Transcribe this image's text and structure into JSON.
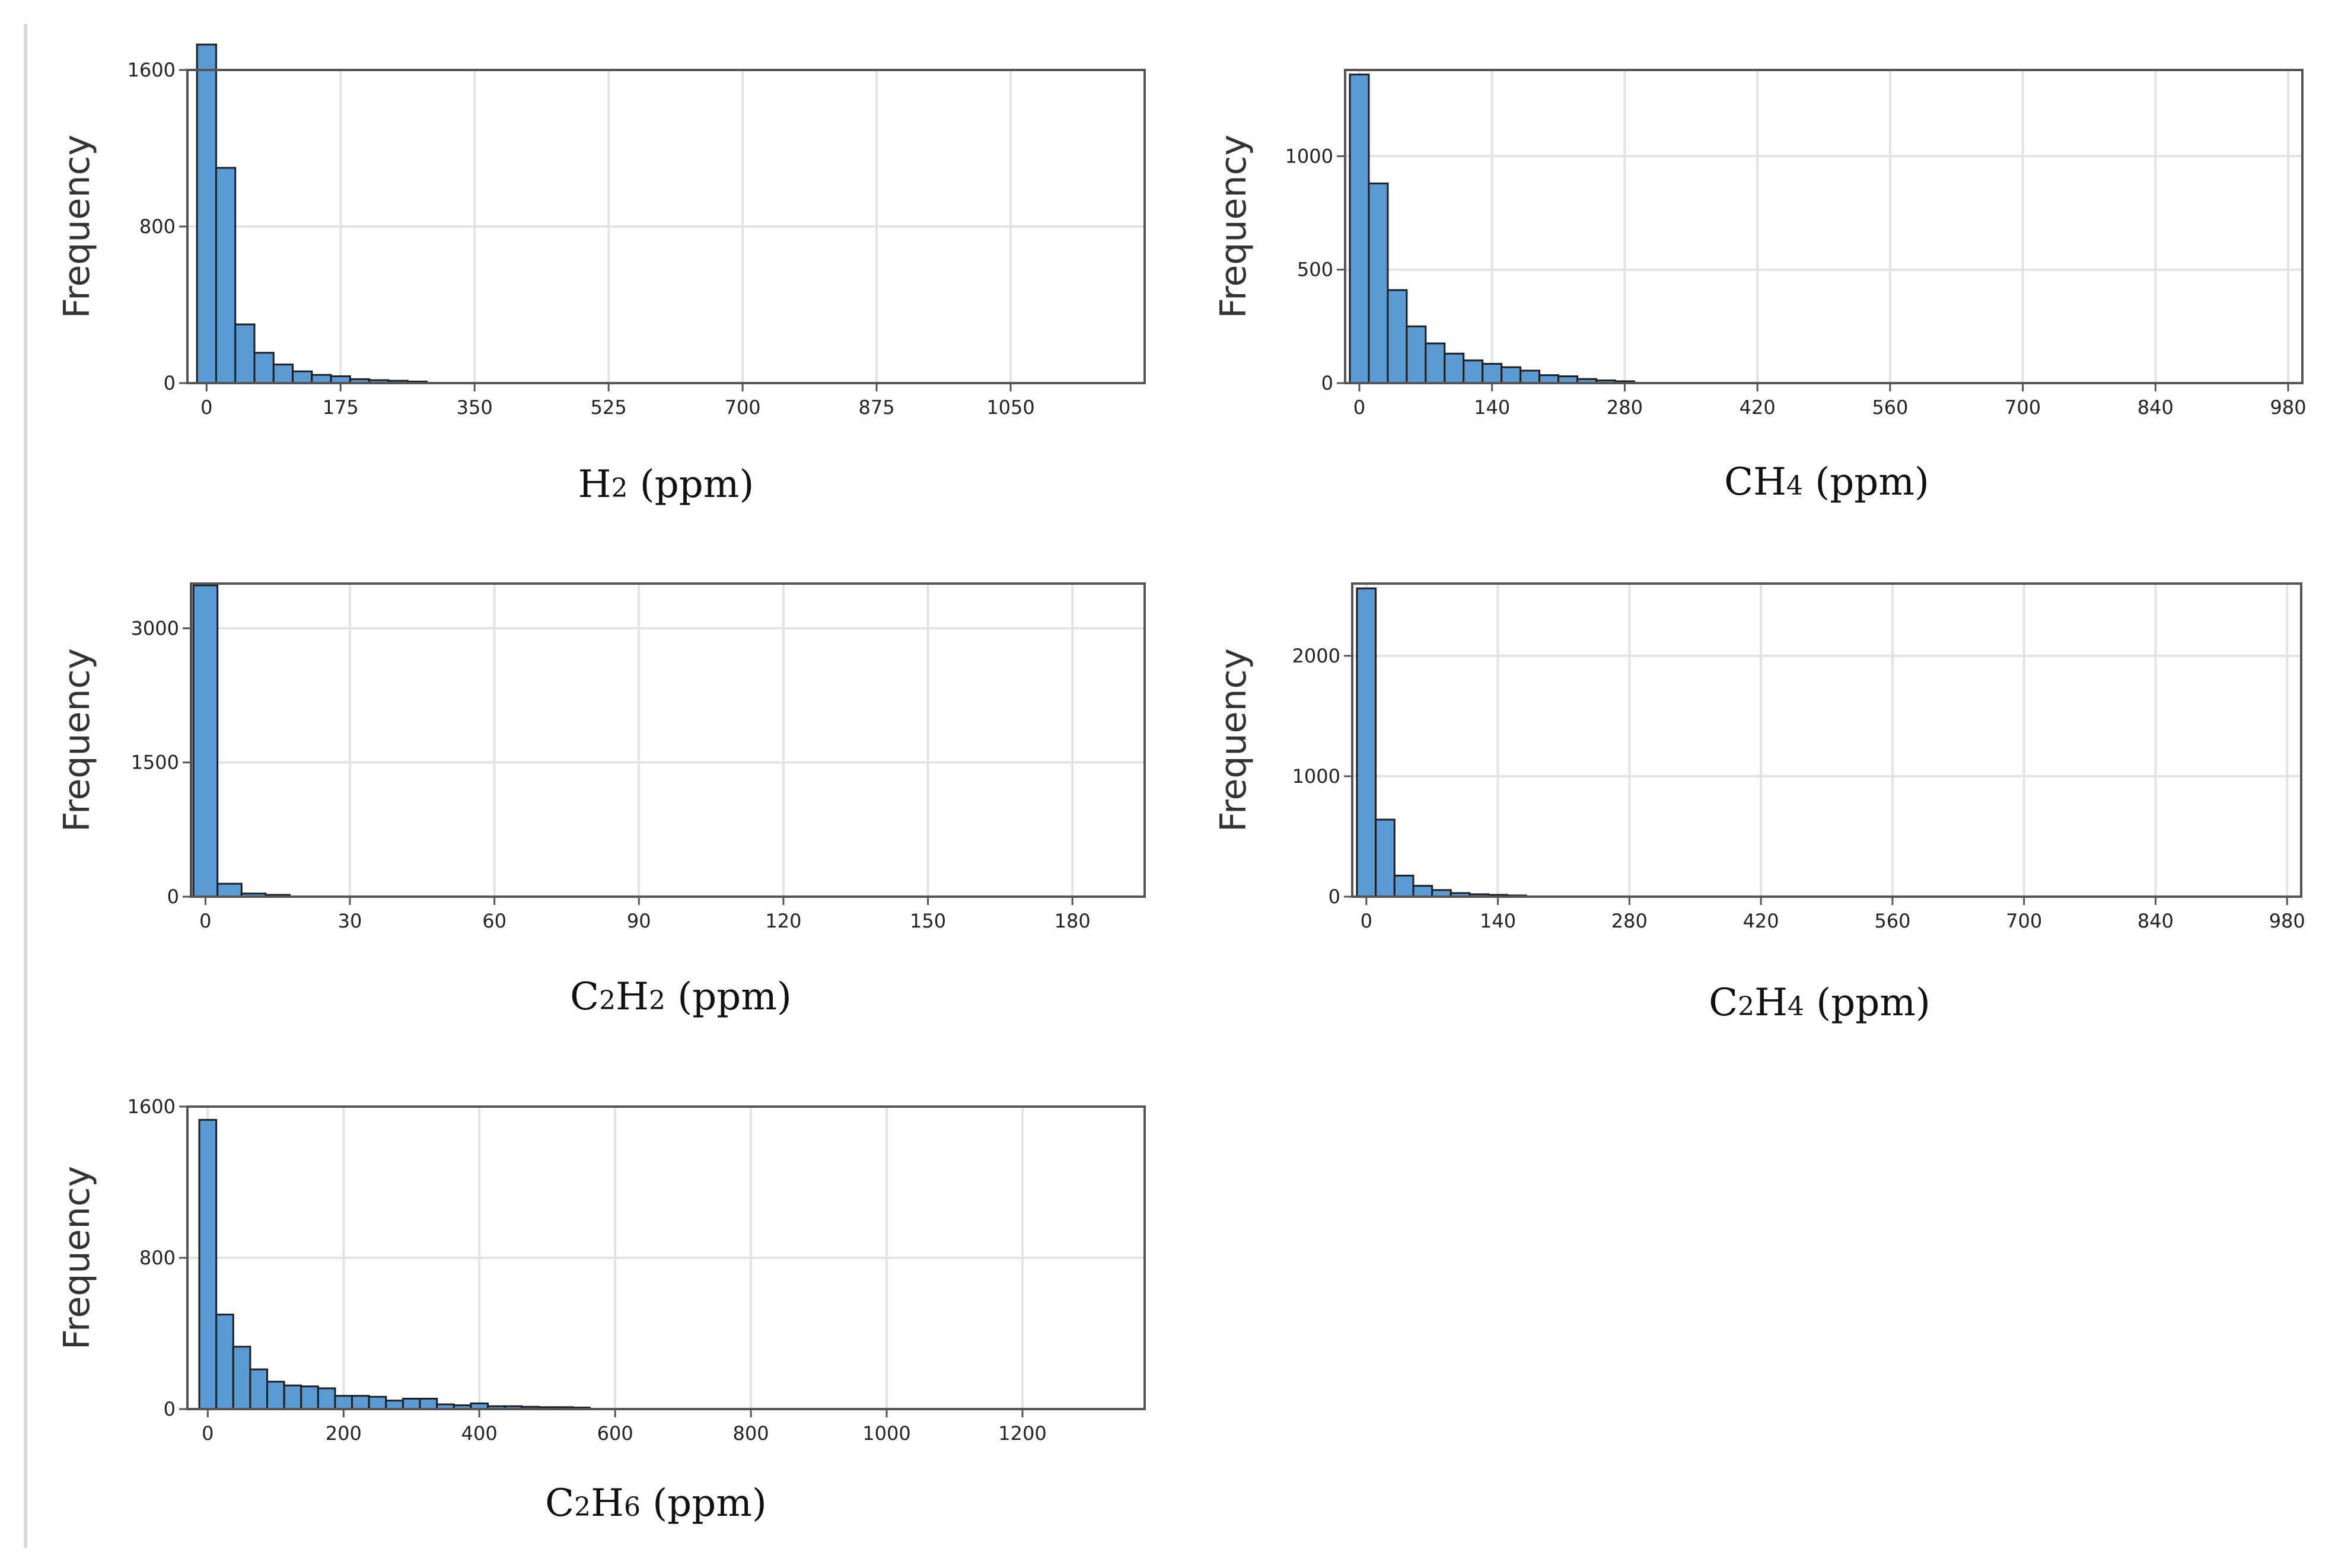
{
  "chart_data": [
    {
      "type": "bar",
      "xlabel": {
        "parts": [
          {
            "t": "H",
            "sub": false
          },
          {
            "t": "2",
            "sub": true
          },
          {
            "t": " (ppm)",
            "sub": false
          }
        ]
      },
      "ylabel": "Frequency",
      "xlim": [
        -25,
        1225
      ],
      "ylim": [
        0,
        1600
      ],
      "xticks": [
        0,
        175,
        350,
        525,
        700,
        875,
        1050
      ],
      "yticks": [
        0,
        800,
        1600
      ],
      "bin_width": 25,
      "bins": [
        {
          "x0": -12.5,
          "value": 1730
        },
        {
          "x0": 12.5,
          "value": 1100
        },
        {
          "x0": 37.5,
          "value": 300
        },
        {
          "x0": 62.5,
          "value": 155
        },
        {
          "x0": 87.5,
          "value": 95
        },
        {
          "x0": 112.5,
          "value": 60
        },
        {
          "x0": 137.5,
          "value": 42
        },
        {
          "x0": 162.5,
          "value": 35
        },
        {
          "x0": 187.5,
          "value": 20
        },
        {
          "x0": 212.5,
          "value": 15
        },
        {
          "x0": 237.5,
          "value": 12
        },
        {
          "x0": 262.5,
          "value": 8
        }
      ]
    },
    {
      "type": "bar",
      "xlabel": {
        "parts": [
          {
            "t": "CH",
            "sub": false
          },
          {
            "t": "4",
            "sub": true
          },
          {
            "t": " (ppm)",
            "sub": false
          }
        ]
      },
      "ylabel": "Frequency",
      "xlim": [
        -15,
        995
      ],
      "ylim": [
        0,
        1380
      ],
      "xticks": [
        0,
        140,
        280,
        420,
        560,
        700,
        840,
        980
      ],
      "yticks": [
        0,
        500,
        1000
      ],
      "bin_width": 20,
      "bins": [
        {
          "x0": -10,
          "value": 1360
        },
        {
          "x0": 10,
          "value": 880
        },
        {
          "x0": 30,
          "value": 410
        },
        {
          "x0": 50,
          "value": 250
        },
        {
          "x0": 70,
          "value": 175
        },
        {
          "x0": 90,
          "value": 130
        },
        {
          "x0": 110,
          "value": 100
        },
        {
          "x0": 130,
          "value": 85
        },
        {
          "x0": 150,
          "value": 70
        },
        {
          "x0": 170,
          "value": 55
        },
        {
          "x0": 190,
          "value": 35
        },
        {
          "x0": 210,
          "value": 30
        },
        {
          "x0": 230,
          "value": 18
        },
        {
          "x0": 250,
          "value": 12
        },
        {
          "x0": 270,
          "value": 8
        }
      ]
    },
    {
      "type": "bar",
      "xlabel": {
        "parts": [
          {
            "t": "C",
            "sub": false
          },
          {
            "t": "2",
            "sub": true
          },
          {
            "t": "H",
            "sub": false
          },
          {
            "t": "2",
            "sub": true
          },
          {
            "t": " (ppm)",
            "sub": false
          }
        ]
      },
      "ylabel": "Frequency",
      "xlim": [
        -3,
        195
      ],
      "ylim": [
        0,
        3500
      ],
      "xticks": [
        0,
        30,
        60,
        90,
        120,
        150,
        180
      ],
      "yticks": [
        0,
        1500,
        3000
      ],
      "bin_width": 5,
      "bins": [
        {
          "x0": -2.5,
          "value": 3480
        },
        {
          "x0": 2.5,
          "value": 145
        },
        {
          "x0": 7.5,
          "value": 35
        },
        {
          "x0": 12.5,
          "value": 20
        }
      ]
    },
    {
      "type": "bar",
      "xlabel": {
        "parts": [
          {
            "t": "C",
            "sub": false
          },
          {
            "t": "2",
            "sub": true
          },
          {
            "t": "H",
            "sub": false
          },
          {
            "t": "4",
            "sub": true
          },
          {
            "t": " (ppm)",
            "sub": false
          }
        ]
      },
      "ylabel": "Frequency",
      "xlim": [
        -15,
        995
      ],
      "ylim": [
        0,
        2600
      ],
      "xticks": [
        0,
        140,
        280,
        420,
        560,
        700,
        840,
        980
      ],
      "yticks": [
        0,
        1000,
        2000
      ],
      "bin_width": 20,
      "bins": [
        {
          "x0": -10,
          "value": 2560
        },
        {
          "x0": 10,
          "value": 640
        },
        {
          "x0": 30,
          "value": 175
        },
        {
          "x0": 50,
          "value": 90
        },
        {
          "x0": 70,
          "value": 55
        },
        {
          "x0": 90,
          "value": 30
        },
        {
          "x0": 110,
          "value": 20
        },
        {
          "x0": 130,
          "value": 15
        },
        {
          "x0": 150,
          "value": 10
        }
      ]
    },
    {
      "type": "bar",
      "xlabel": {
        "parts": [
          {
            "t": "C",
            "sub": false
          },
          {
            "t": "2",
            "sub": true
          },
          {
            "t": "H",
            "sub": false
          },
          {
            "t": "6",
            "sub": true
          },
          {
            "t": " (ppm)",
            "sub": false
          }
        ]
      },
      "ylabel": "Frequency",
      "xlim": [
        -30,
        1380
      ],
      "ylim": [
        0,
        1600
      ],
      "xticks": [
        0,
        200,
        400,
        600,
        800,
        1000,
        1200
      ],
      "yticks": [
        0,
        800,
        1600
      ],
      "bin_width": 25,
      "bins": [
        {
          "x0": -12.5,
          "value": 1530
        },
        {
          "x0": 12.5,
          "value": 500
        },
        {
          "x0": 37.5,
          "value": 330
        },
        {
          "x0": 62.5,
          "value": 210
        },
        {
          "x0": 87.5,
          "value": 145
        },
        {
          "x0": 112.5,
          "value": 125
        },
        {
          "x0": 137.5,
          "value": 120
        },
        {
          "x0": 162.5,
          "value": 110
        },
        {
          "x0": 187.5,
          "value": 70
        },
        {
          "x0": 212.5,
          "value": 70
        },
        {
          "x0": 237.5,
          "value": 65
        },
        {
          "x0": 262.5,
          "value": 45
        },
        {
          "x0": 287.5,
          "value": 55
        },
        {
          "x0": 312.5,
          "value": 55
        },
        {
          "x0": 337.5,
          "value": 25
        },
        {
          "x0": 362.5,
          "value": 20
        },
        {
          "x0": 387.5,
          "value": 30
        },
        {
          "x0": 412.5,
          "value": 15
        },
        {
          "x0": 437.5,
          "value": 15
        },
        {
          "x0": 462.5,
          "value": 12
        },
        {
          "x0": 487.5,
          "value": 10
        },
        {
          "x0": 512.5,
          "value": 10
        },
        {
          "x0": 537.5,
          "value": 8
        }
      ]
    }
  ],
  "colors": {
    "bar_fill": "#5b9bd5",
    "bar_stroke": "#1f1f1f",
    "grid": "#e3e3e3",
    "frame": "#555555"
  }
}
